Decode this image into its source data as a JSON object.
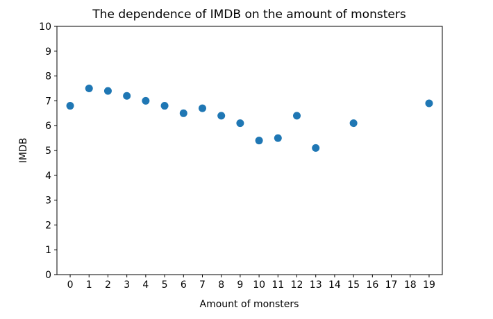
{
  "chart_data": {
    "type": "scatter",
    "title": "The dependence of IMDB on the amount of monsters",
    "xlabel": "Amount of monsters",
    "ylabel": "IMDB",
    "x_ticks": [
      "0",
      "1",
      "2",
      "3",
      "4",
      "5",
      "6",
      "7",
      "8",
      "9",
      "10",
      "11",
      "12",
      "13",
      "14",
      "15",
      "16",
      "17",
      "18",
      "19"
    ],
    "y_ticks": [
      "0",
      "1",
      "2",
      "3",
      "4",
      "5",
      "6",
      "7",
      "8",
      "9",
      "10"
    ],
    "xlim": [
      -0.7,
      19.7
    ],
    "ylim": [
      0,
      10
    ],
    "grid": false,
    "points": [
      {
        "x": 0,
        "y": 6.8
      },
      {
        "x": 1,
        "y": 7.5
      },
      {
        "x": 2,
        "y": 7.4
      },
      {
        "x": 3,
        "y": 7.2
      },
      {
        "x": 4,
        "y": 7.0
      },
      {
        "x": 5,
        "y": 6.8
      },
      {
        "x": 6,
        "y": 6.5
      },
      {
        "x": 7,
        "y": 6.7
      },
      {
        "x": 8,
        "y": 6.4
      },
      {
        "x": 9,
        "y": 6.1
      },
      {
        "x": 10,
        "y": 5.4
      },
      {
        "x": 11,
        "y": 5.5
      },
      {
        "x": 12,
        "y": 6.4
      },
      {
        "x": 13,
        "y": 5.1
      },
      {
        "x": 15,
        "y": 6.1
      },
      {
        "x": 19,
        "y": 6.9
      }
    ],
    "marker_color": "#1f77b4"
  }
}
